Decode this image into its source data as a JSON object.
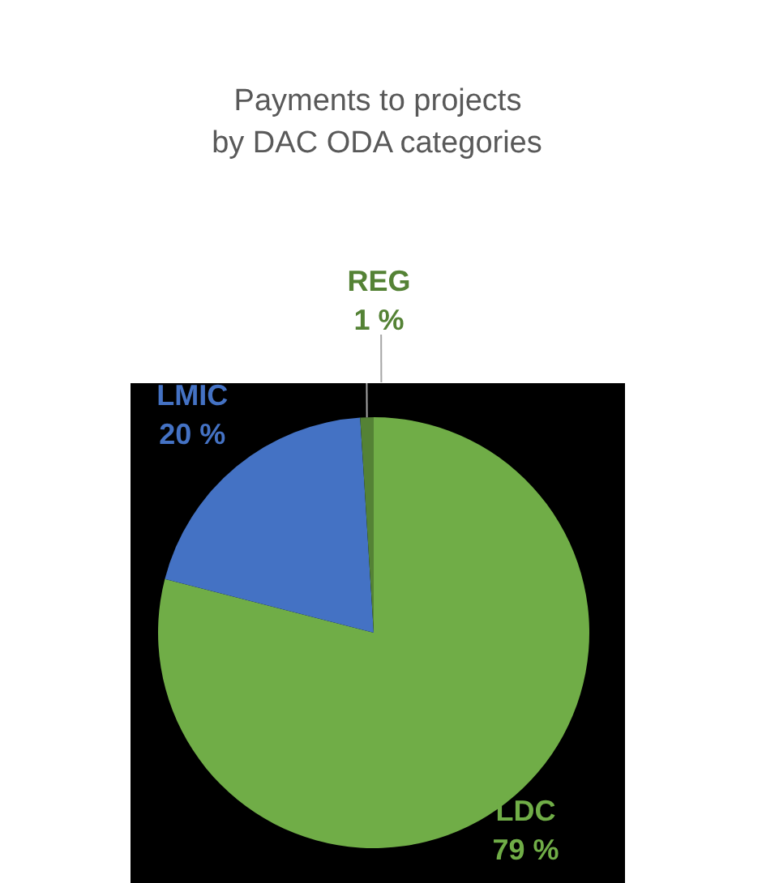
{
  "chart_data": {
    "type": "pie",
    "title": "Payments to projects\nby DAC ODA categories",
    "categories": [
      "LDC",
      "LMIC",
      "REG"
    ],
    "values": [
      79,
      20,
      1
    ],
    "colors": [
      "#70ad47",
      "#4472c4",
      "#548235"
    ],
    "value_labels": [
      "79 %",
      "20 %",
      "1 %"
    ]
  }
}
